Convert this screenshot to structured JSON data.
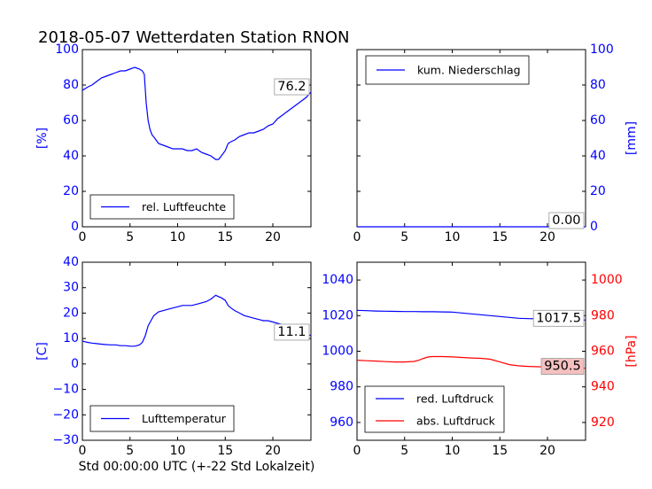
{
  "title": "2018-05-07 Wetterdaten Station RNON",
  "xlabel": "Std 00:00:00 UTC (+-22 Std Lokalzeit)",
  "colors": {
    "primary": "#0000ff",
    "secondary": "#ff0000"
  },
  "chart_data": [
    {
      "type": "line",
      "ylabel": "[%]",
      "ylabel_color": "#0000ff",
      "xlim": [
        0,
        24
      ],
      "ylim": [
        0,
        100
      ],
      "xticks": [
        "0",
        "5",
        "10",
        "15",
        "20"
      ],
      "yticks": [
        "0",
        "20",
        "40",
        "60",
        "80",
        "100"
      ],
      "legend": {
        "placement": "lower-left",
        "entries": [
          "rel. Luftfeuchte"
        ]
      },
      "value_label": "76.2",
      "series": [
        {
          "name": "rel. Luftfeuchte",
          "color": "#0000ff",
          "x": [
            0,
            0.3,
            0.6,
            1,
            1.5,
            2,
            2.5,
            3,
            3.5,
            4,
            4.5,
            5,
            5.5,
            6,
            6.3,
            6.5,
            6.7,
            6.9,
            7.1,
            7.3,
            7.6,
            8,
            8.5,
            9,
            9.5,
            10,
            10.5,
            11,
            11.5,
            12,
            12.5,
            13,
            13.5,
            14,
            14.3,
            14.6,
            15,
            15.3,
            15.6,
            16,
            16.5,
            17,
            17.5,
            18,
            18.5,
            19,
            19.5,
            20,
            20.5,
            21,
            21.5,
            22,
            22.5,
            23,
            23.5,
            24
          ],
          "y": [
            77,
            78,
            79,
            80,
            82,
            84,
            85,
            86,
            87,
            88,
            88,
            89,
            90,
            89,
            88,
            86,
            70,
            60,
            55,
            52,
            50,
            47,
            46,
            45,
            44,
            44,
            44,
            43,
            43,
            44,
            42,
            41,
            40,
            38,
            38,
            40,
            43,
            47,
            48,
            49,
            51,
            52,
            53,
            53,
            54,
            55,
            57,
            58,
            61,
            63,
            65,
            67,
            69,
            71,
            73,
            76
          ]
        }
      ]
    },
    {
      "type": "line",
      "ylabel": "[mm]",
      "ylabel_color": "#0000ff",
      "xlim": [
        0,
        24
      ],
      "ylim": [
        0,
        100
      ],
      "xticks": [
        "0",
        "5",
        "10",
        "15",
        "20"
      ],
      "yticks": [
        "0",
        "20",
        "40",
        "60",
        "80",
        "100"
      ],
      "legend": {
        "placement": "upper-left",
        "entries": [
          "kum. Niederschlag"
        ]
      },
      "value_label": "0.00",
      "series": [
        {
          "name": "kum. Niederschlag",
          "color": "#0000ff",
          "x": [
            0,
            24
          ],
          "y": [
            0,
            0
          ]
        }
      ]
    },
    {
      "type": "line",
      "ylabel": "[C]",
      "ylabel_color": "#0000ff",
      "xlim": [
        0,
        24
      ],
      "ylim": [
        -30,
        40
      ],
      "xticks": [
        "0",
        "5",
        "10",
        "15",
        "20"
      ],
      "yticks": [
        "−30",
        "−20",
        "−10",
        "0",
        "10",
        "20",
        "30",
        "40"
      ],
      "legend": {
        "placement": "lower-left",
        "entries": [
          "Lufttemperatur"
        ]
      },
      "value_label": "11.1",
      "series": [
        {
          "name": "Lufttemperatur",
          "color": "#0000ff",
          "x": [
            0,
            0.5,
            1,
            1.5,
            2,
            2.5,
            3,
            3.5,
            4,
            4.5,
            5,
            5.5,
            6,
            6.3,
            6.6,
            6.9,
            7.2,
            7.5,
            8,
            8.5,
            9,
            9.5,
            10,
            10.5,
            11,
            11.5,
            12,
            12.5,
            13,
            13.5,
            14,
            14.3,
            14.6,
            15,
            15.3,
            15.6,
            16,
            16.5,
            17,
            17.5,
            18,
            18.5,
            19,
            19.5,
            20,
            20.5,
            21,
            21.5,
            22,
            22.5,
            23,
            23.5,
            24
          ],
          "y": [
            9,
            8.5,
            8.2,
            8,
            7.8,
            7.6,
            7.5,
            7.5,
            7.2,
            7.2,
            7.0,
            7.0,
            7.5,
            8.5,
            11,
            15,
            17,
            19,
            20.5,
            21,
            21.5,
            22,
            22.5,
            23,
            23,
            23,
            23.5,
            24,
            24.5,
            25.5,
            27,
            26.5,
            26,
            25,
            23,
            22,
            21,
            20,
            19,
            18.5,
            18,
            17.5,
            17,
            17,
            16.5,
            16,
            15.5,
            15,
            14,
            13.5,
            12.5,
            12,
            11.1
          ]
        }
      ]
    },
    {
      "type": "line",
      "ylabel": "[hPa]",
      "ylabel_color": "#ff0000",
      "xlim": [
        0,
        24
      ],
      "ylim": [
        950,
        1050
      ],
      "y2lim": [
        910,
        1010
      ],
      "xticks": [
        "0",
        "5",
        "10",
        "15",
        "20"
      ],
      "yticks": [
        "960",
        "980",
        "1000",
        "1020",
        "1040"
      ],
      "y2ticks": [
        "920",
        "940",
        "960",
        "980",
        "1000"
      ],
      "legend": {
        "placement": "lower-left",
        "entries": [
          "red. Luftdruck",
          "abs. Luftdruck"
        ]
      },
      "value_labels": [
        "1017.5",
        "950.5"
      ],
      "series": [
        {
          "name": "red. Luftdruck",
          "color": "#0000ff",
          "axis": "left",
          "x": [
            0,
            1,
            2,
            3,
            4,
            5,
            6,
            7,
            8,
            9,
            10,
            11,
            12,
            13,
            14,
            15,
            16,
            17,
            18,
            19,
            20,
            21,
            22,
            23,
            24
          ],
          "y": [
            1023,
            1022.8,
            1022.6,
            1022.5,
            1022.4,
            1022.3,
            1022.3,
            1022.2,
            1022.2,
            1022.1,
            1022.0,
            1021.5,
            1021,
            1020.5,
            1020,
            1019.5,
            1019,
            1018.5,
            1018.3,
            1018.2,
            1018.0,
            1017.8,
            1017.7,
            1017.6,
            1017.5
          ]
        },
        {
          "name": "abs. Luftdruck",
          "color": "#ff0000",
          "axis": "right",
          "x": [
            0,
            1,
            2,
            3,
            4,
            5,
            6,
            6.5,
            7,
            7.5,
            8,
            9,
            10,
            11,
            12,
            13,
            14,
            15,
            16,
            17,
            18,
            19,
            20,
            21,
            22,
            23,
            24
          ],
          "y": [
            955,
            954.7,
            954.5,
            954.2,
            954.0,
            954.0,
            954.3,
            955,
            956,
            956.8,
            957.0,
            957.0,
            956.8,
            956.5,
            956.2,
            956.0,
            955.5,
            954.0,
            952.5,
            951.8,
            951.5,
            951.3,
            951.2,
            951.0,
            950.8,
            950.6,
            950.5
          ]
        }
      ]
    }
  ]
}
